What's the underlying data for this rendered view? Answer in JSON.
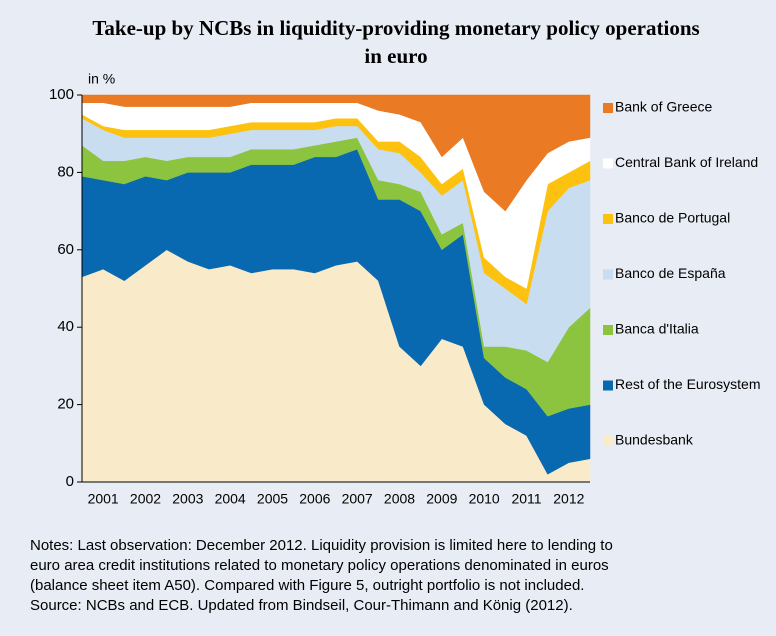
{
  "chart_data": {
    "type": "stacked_area",
    "title": [
      "Take-up by NCBs in liquidity-providing monetary policy operations",
      "in euro"
    ],
    "y_label": "in %",
    "x": [
      2001,
      2001.5,
      2002,
      2002.5,
      2003,
      2003.5,
      2004,
      2004.5,
      2005,
      2005.5,
      2006,
      2006.5,
      2007,
      2007.5,
      2008,
      2008.5,
      2009,
      2009.5,
      2010,
      2010.5,
      2011,
      2011.5,
      2012,
      2012.5,
      2013
    ],
    "xlim": [
      2001,
      2013
    ],
    "xticks": [
      {
        "value": 2001.5,
        "label": "2001"
      },
      {
        "value": 2002.5,
        "label": "2002"
      },
      {
        "value": 2003.5,
        "label": "2003"
      },
      {
        "value": 2004.5,
        "label": "2004"
      },
      {
        "value": 2005.5,
        "label": "2005"
      },
      {
        "value": 2006.5,
        "label": "2006"
      },
      {
        "value": 2007.5,
        "label": "2007"
      },
      {
        "value": 2008.5,
        "label": "2008"
      },
      {
        "value": 2009.5,
        "label": "2009"
      },
      {
        "value": 2010.5,
        "label": "2010"
      },
      {
        "value": 2011.5,
        "label": "2011"
      },
      {
        "value": 2012.5,
        "label": "2012"
      }
    ],
    "ylim": [
      0,
      100
    ],
    "yticks": [
      0,
      20,
      40,
      60,
      80,
      100
    ],
    "series": [
      {
        "name": "Bundesbank",
        "color": "#f9ebc9",
        "values": [
          53,
          55,
          52,
          56,
          60,
          57,
          55,
          56,
          54,
          55,
          55,
          54,
          56,
          57,
          52,
          35,
          30,
          37,
          35,
          20,
          15,
          12,
          2,
          5,
          6
        ]
      },
      {
        "name": "Rest of the Eurosystem",
        "color": "#0868b0",
        "values": [
          26,
          23,
          25,
          23,
          18,
          23,
          25,
          24,
          28,
          27,
          27,
          30,
          28,
          29,
          21,
          38,
          40,
          23,
          29,
          12,
          12,
          12,
          15,
          14,
          14
        ]
      },
      {
        "name": "Banca d'Italia",
        "color": "#8cc43f",
        "values": [
          8,
          5,
          6,
          5,
          5,
          4,
          4,
          4,
          4,
          4,
          4,
          3,
          4,
          3,
          5,
          4,
          5,
          4,
          3,
          3,
          8,
          10,
          14,
          21,
          25
        ]
      },
      {
        "name": "Banco de España",
        "color": "#c9ddf0",
        "values": [
          7,
          8,
          6,
          5,
          6,
          5,
          5,
          6,
          5,
          5,
          5,
          4,
          4,
          3,
          8,
          8,
          5,
          10,
          11,
          19,
          15,
          12,
          39,
          36,
          33
        ]
      },
      {
        "name": "Banco de Portugal",
        "color": "#fdc20f",
        "values": [
          1,
          1,
          2,
          2,
          2,
          2,
          2,
          2,
          2,
          2,
          2,
          2,
          2,
          2,
          2,
          3,
          4,
          3,
          3,
          4,
          3,
          4,
          7,
          4,
          5
        ]
      },
      {
        "name": "Central Bank of Ireland",
        "color": "#ffffff",
        "values": [
          3,
          6,
          6,
          6,
          6,
          6,
          6,
          5,
          5,
          5,
          5,
          5,
          4,
          4,
          8,
          7,
          9,
          7,
          8,
          17,
          17,
          28,
          8,
          8,
          6
        ]
      },
      {
        "name": "Bank of Greece",
        "color": "#ea7a23",
        "values": [
          2,
          2,
          3,
          3,
          3,
          3,
          3,
          3,
          2,
          2,
          2,
          2,
          2,
          2,
          4,
          5,
          7,
          16,
          11,
          25,
          30,
          22,
          15,
          12,
          11
        ]
      }
    ],
    "notes": [
      "Notes: Last observation: December 2012. Liquidity provision is limited here to lending to",
      "euro area credit institutions related to monetary policy operations denominated in euros",
      "(balance sheet item A50). Compared with Figure 5, outright portfolio is not included.",
      "Source: NCBs and ECB. Updated from Bindseil, Cour-Thimann and König (2012)."
    ]
  }
}
